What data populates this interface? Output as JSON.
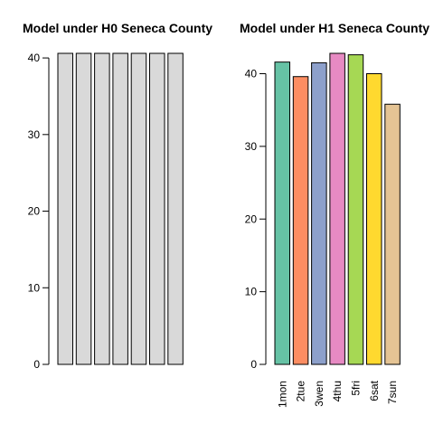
{
  "chart_data": [
    {
      "type": "bar",
      "title": "Model under H0 Seneca County",
      "categories": [
        "1mon",
        "2tue",
        "3wen",
        "4thu",
        "5fri",
        "6sat",
        "7sun"
      ],
      "values": [
        40.6,
        40.6,
        40.6,
        40.6,
        40.6,
        40.6,
        40.6
      ],
      "ylim": [
        0,
        40.6
      ],
      "yticks": [
        0,
        10,
        20,
        30,
        40
      ],
      "show_category_labels": false,
      "colors": [
        "#d9d9d9",
        "#d9d9d9",
        "#d9d9d9",
        "#d9d9d9",
        "#d9d9d9",
        "#d9d9d9",
        "#d9d9d9"
      ]
    },
    {
      "type": "bar",
      "title": "Model under H1 Seneca County",
      "categories": [
        "1mon",
        "2tue",
        "3wen",
        "4thu",
        "5fri",
        "6sat",
        "7sun"
      ],
      "values": [
        41.6,
        39.6,
        41.5,
        42.8,
        42.6,
        40.0,
        35.8
      ],
      "ylim": [
        0,
        42.8
      ],
      "yticks": [
        0,
        10,
        20,
        30,
        40
      ],
      "show_category_labels": true,
      "colors": [
        "#66c2a5",
        "#fc8d62",
        "#8da0cb",
        "#e78ac3",
        "#a6d854",
        "#ffd92f",
        "#e5c494"
      ]
    }
  ]
}
